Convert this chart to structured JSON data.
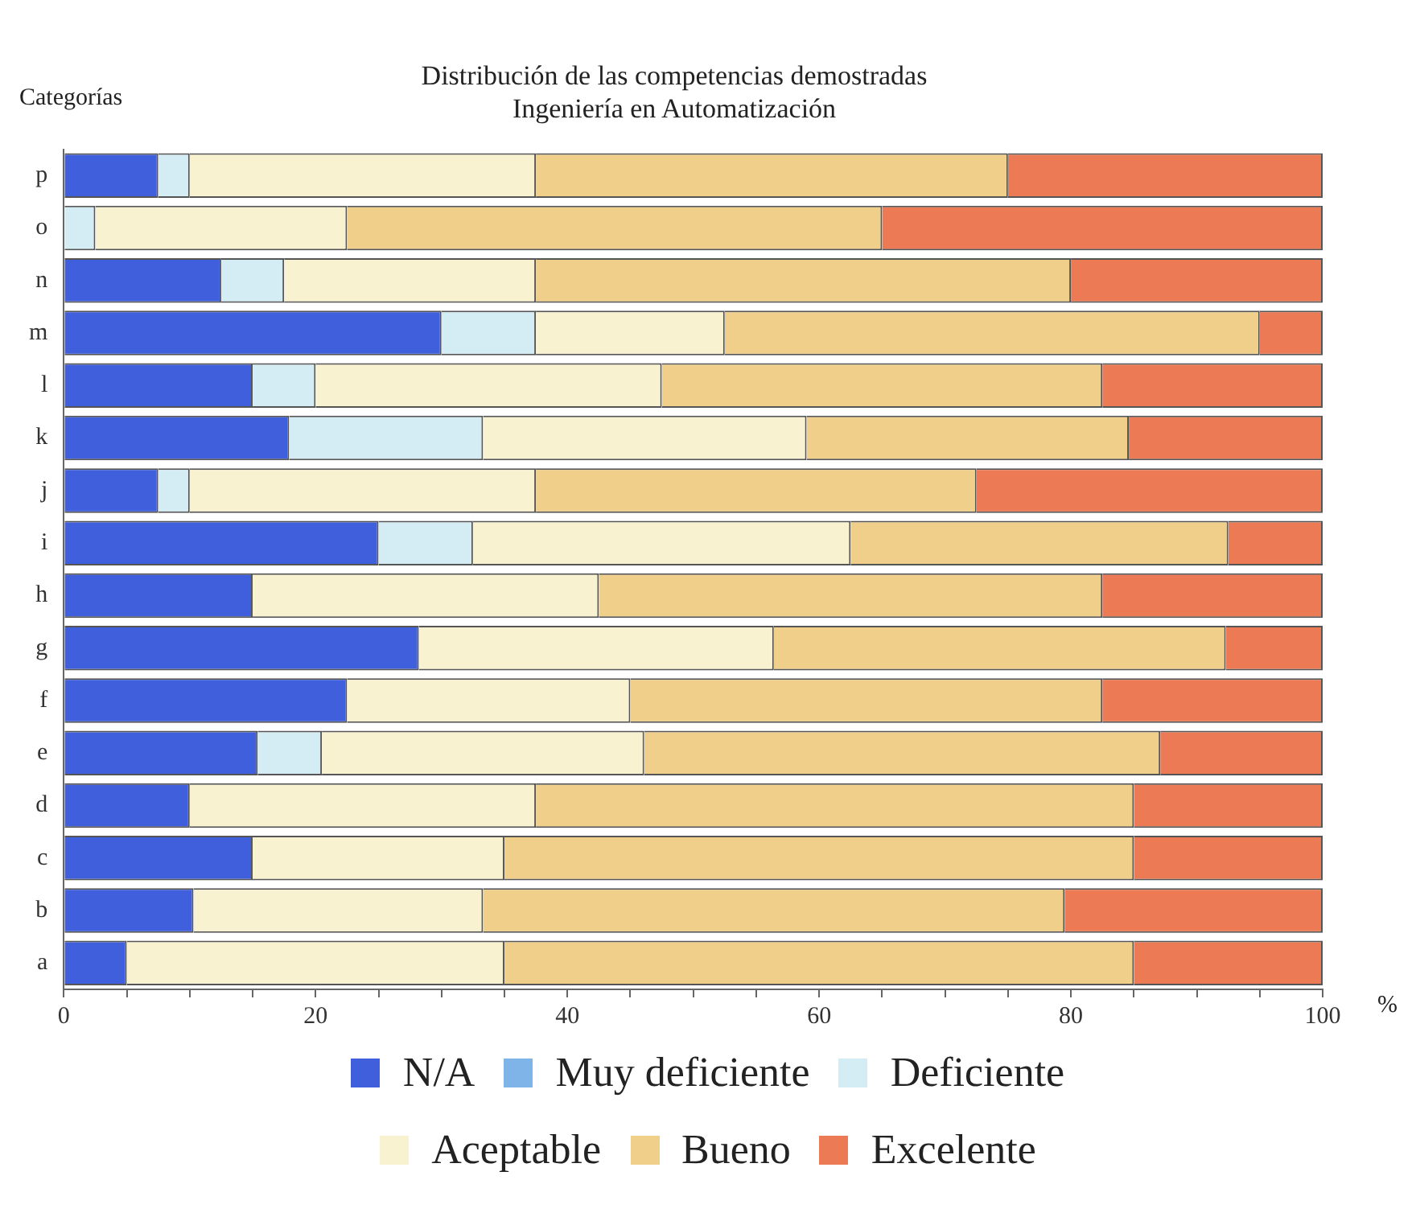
{
  "chart_data": {
    "type": "bar",
    "orientation": "horizontal",
    "stacked": true,
    "title": "Distribución de las competencias demostradas\nIngeniería en Automatización",
    "ylabel": "Categorías",
    "xlabel": "%",
    "categories": [
      "p",
      "o",
      "n",
      "m",
      "l",
      "k",
      "j",
      "i",
      "h",
      "g",
      "f",
      "e",
      "d",
      "c",
      "b",
      "a"
    ],
    "xlim": [
      0,
      100
    ],
    "xticks": [
      0,
      {
        "value": 5,
        "label": null
      },
      {
        "value": 10,
        "label": null
      },
      {
        "value": 15,
        "label": null
      },
      20,
      {
        "value": 25,
        "label": null
      },
      {
        "value": 30,
        "label": null
      },
      {
        "value": 35,
        "label": null
      },
      40,
      {
        "value": 45,
        "label": null
      },
      {
        "value": 50,
        "label": null
      },
      {
        "value": 55,
        "label": null
      },
      60,
      {
        "value": 65,
        "label": null
      },
      {
        "value": 70,
        "label": null
      },
      {
        "value": 75,
        "label": null
      },
      80,
      {
        "value": 85,
        "label": null
      },
      {
        "value": 90,
        "label": null
      },
      {
        "value": 95,
        "label": null
      },
      100
    ],
    "grid": false,
    "legend": "bottom",
    "series": [
      {
        "name": "N/A",
        "color": "#3f5fdc",
        "values": [
          7.5,
          0,
          12.5,
          30,
          15,
          17.9,
          7.5,
          25,
          15,
          28.2,
          22.5,
          15.4,
          10,
          15,
          10.3,
          5
        ]
      },
      {
        "name": "Muy deficiente",
        "color": "#7fb4e8",
        "values": [
          0,
          0,
          0,
          0,
          0,
          0,
          0,
          0,
          0,
          0,
          0,
          0,
          0,
          0,
          0,
          0
        ]
      },
      {
        "name": "Deficiente",
        "color": "#d4ecf4",
        "values": [
          2.5,
          2.5,
          5,
          7.5,
          5,
          15.4,
          2.5,
          7.5,
          0,
          0,
          0,
          5.1,
          0,
          0,
          0,
          0
        ]
      },
      {
        "name": "Aceptable",
        "color": "#f8f2d0",
        "values": [
          27.5,
          20,
          20,
          15,
          27.5,
          25.7,
          27.5,
          30,
          27.5,
          28.2,
          22.5,
          25.6,
          27.5,
          20,
          23,
          30
        ]
      },
      {
        "name": "Bueno",
        "color": "#f0cf8a",
        "values": [
          37.5,
          42.5,
          42.5,
          42.5,
          35,
          25.6,
          35,
          30,
          40,
          35.9,
          37.5,
          41,
          47.5,
          50,
          46.2,
          50
        ]
      },
      {
        "name": "Excelente",
        "color": "#ec7a55",
        "values": [
          25,
          35,
          20,
          5,
          17.5,
          15.4,
          27.5,
          7.5,
          17.5,
          7.7,
          17.5,
          12.9,
          15,
          15,
          20.5,
          15
        ]
      }
    ]
  }
}
